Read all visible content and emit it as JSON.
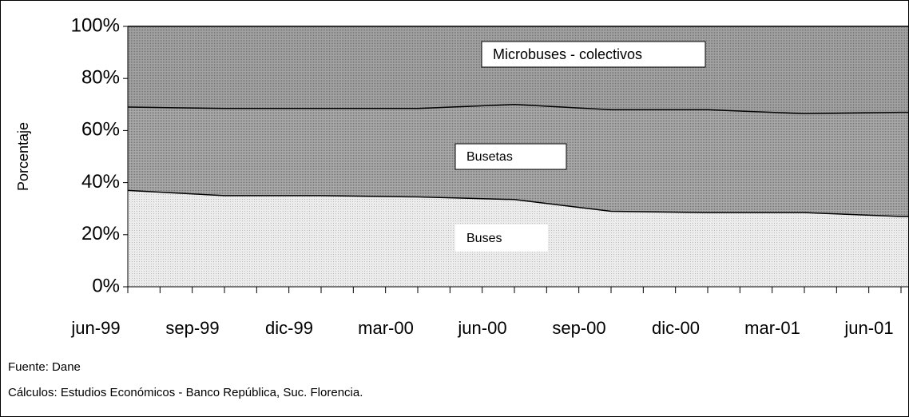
{
  "chart_data": {
    "type": "area",
    "stacked": true,
    "y_label": "Porcentaje",
    "categories": [
      "jun-99",
      "sep-99",
      "dic-99",
      "mar-00",
      "jun-00",
      "sep-00",
      "dic-00",
      "mar-01",
      "jun-01"
    ],
    "series": [
      {
        "name": "Buses",
        "color": "#ececec",
        "values": [
          37,
          35,
          35,
          34.5,
          33.5,
          29,
          28.5,
          28.5,
          27
        ]
      },
      {
        "name": "Busetas",
        "color": "#a9a9a9",
        "values": [
          32,
          33.5,
          33.5,
          34,
          36.5,
          39,
          39.5,
          38,
          40
        ]
      },
      {
        "name": "Microbuses - colectivos",
        "color": "#a2a2a2",
        "values": [
          31,
          31.5,
          31.5,
          31.5,
          30,
          32,
          32,
          33.5,
          33
        ]
      }
    ],
    "ylim": [
      0,
      100
    ],
    "yticks": [
      {
        "value": 0,
        "label": "0%"
      },
      {
        "value": 20,
        "label": "20%"
      },
      {
        "value": 40,
        "label": "40%"
      },
      {
        "value": 60,
        "label": "60%"
      },
      {
        "value": 80,
        "label": "80%"
      },
      {
        "value": 100,
        "label": "100%"
      }
    ],
    "notes": [
      "Fuente:  Dane",
      "Cálculos:  Estudios Económicos - Banco República, Suc. Florencia."
    ]
  }
}
